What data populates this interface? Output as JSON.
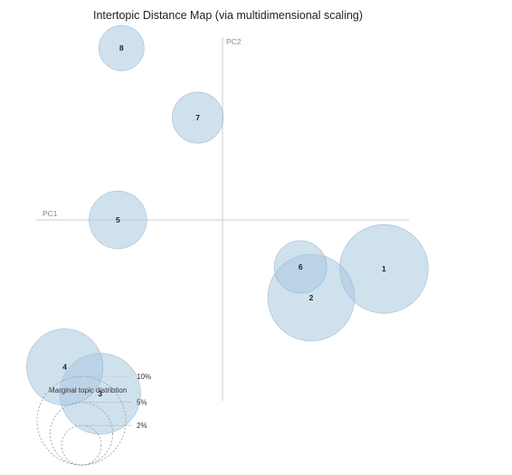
{
  "chart_data": {
    "type": "scatter",
    "title": "Intertopic Distance Map (via multidimensional scaling)",
    "xlabel": "PC1",
    "ylabel": "PC2",
    "xlim": [
      -1,
      1
    ],
    "ylim": [
      -1,
      1
    ],
    "grid": false,
    "colors": {
      "bubble_fill": "#a9c9e0",
      "bubble_stroke": "#7aa3c2",
      "axis": "#cccccc",
      "legend_circle": "#999999"
    },
    "topics": [
      {
        "label": "1",
        "x": 0.91,
        "y": -0.24,
        "size": 0.1
      },
      {
        "label": "2",
        "x": 0.5,
        "y": -0.38,
        "size": 0.096
      },
      {
        "label": "3",
        "x": -0.69,
        "y": -0.85,
        "size": 0.083
      },
      {
        "label": "4",
        "x": -0.89,
        "y": -0.72,
        "size": 0.074
      },
      {
        "label": "5",
        "x": -0.59,
        "y": 0.0,
        "size": 0.042
      },
      {
        "label": "6",
        "x": 0.44,
        "y": -0.23,
        "size": 0.035
      },
      {
        "label": "7",
        "x": -0.14,
        "y": 0.5,
        "size": 0.033
      },
      {
        "label": "8",
        "x": -0.57,
        "y": 0.84,
        "size": 0.026
      }
    ],
    "size_legend": {
      "title": "Marginal topic distribtion",
      "entries": [
        {
          "label": "2%",
          "value": 0.02
        },
        {
          "label": "5%",
          "value": 0.05
        },
        {
          "label": "10%",
          "value": 0.1
        }
      ]
    }
  }
}
